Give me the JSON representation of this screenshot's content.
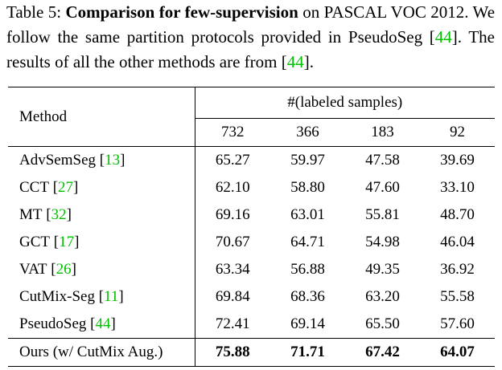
{
  "caption": {
    "label": "Table 5:",
    "title": "Comparison for few-supervision",
    "segments": [
      " on PASCAL VOC 2012. We follow the same partition protocols provided in PseudoSeg [",
      "44",
      "]. The results of all the other methods are from [",
      "44",
      "]."
    ]
  },
  "table": {
    "method_header": "Method",
    "group_header": "#(labeled samples)",
    "columns": [
      "732",
      "366",
      "183",
      "92"
    ],
    "rows": [
      {
        "method": "AdvSemSeg",
        "ref": "13",
        "values": [
          "65.27",
          "59.97",
          "47.58",
          "39.69"
        ]
      },
      {
        "method": "CCT",
        "ref": "27",
        "values": [
          "62.10",
          "58.80",
          "47.60",
          "33.10"
        ]
      },
      {
        "method": "MT",
        "ref": "32",
        "values": [
          "69.16",
          "63.01",
          "55.81",
          "48.70"
        ]
      },
      {
        "method": "GCT",
        "ref": "17",
        "values": [
          "70.67",
          "64.71",
          "54.98",
          "46.04"
        ]
      },
      {
        "method": "VAT",
        "ref": "26",
        "values": [
          "63.34",
          "56.88",
          "49.35",
          "36.92"
        ]
      },
      {
        "method": "CutMix-Seg",
        "ref": "11",
        "values": [
          "69.84",
          "68.36",
          "63.20",
          "55.58"
        ]
      },
      {
        "method": "PseudoSeg",
        "ref": "44",
        "values": [
          "72.41",
          "69.14",
          "65.50",
          "57.60"
        ]
      }
    ],
    "ours": {
      "method": "Ours (w/ CutMix Aug.)",
      "values": [
        "75.88",
        "71.71",
        "67.42",
        "64.07"
      ]
    }
  }
}
